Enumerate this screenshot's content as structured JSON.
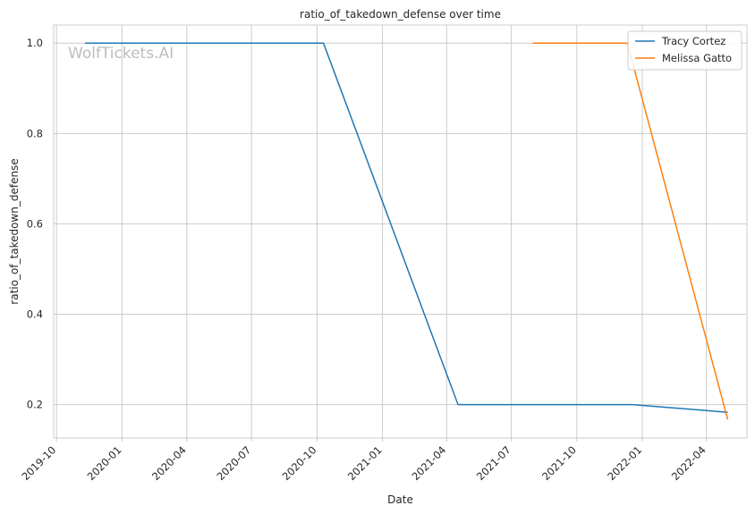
{
  "chart_data": {
    "type": "line",
    "title": "ratio_of_takedown_defense over time",
    "xlabel": "Date",
    "ylabel": "ratio_of_takedown_defense",
    "watermark": "WolfTickets.AI",
    "xlim": [
      "2019-09-27",
      "2022-05-28"
    ],
    "ylim": [
      0.126,
      1.04
    ],
    "x_ticks": [
      "2019-10",
      "2020-01",
      "2020-04",
      "2020-07",
      "2020-10",
      "2021-01",
      "2021-04",
      "2021-07",
      "2021-10",
      "2022-01",
      "2022-04"
    ],
    "y_ticks": [
      0.2,
      0.4,
      0.6,
      0.8,
      1.0
    ],
    "y_tick_labels": [
      "0.2",
      "0.4",
      "0.6",
      "0.8",
      "1.0"
    ],
    "grid": true,
    "legend_position": "top-right",
    "series": [
      {
        "name": "Tracy Cortez",
        "color": "#1f77b4",
        "points": [
          {
            "x": "2019-11-10",
            "y": 1.0
          },
          {
            "x": "2020-10-10",
            "y": 1.0
          },
          {
            "x": "2021-04-17",
            "y": 0.2
          },
          {
            "x": "2021-12-18",
            "y": 0.2
          },
          {
            "x": "2022-05-01",
            "y": 0.183
          }
        ]
      },
      {
        "name": "Melissa Gatto",
        "color": "#ff7f0e",
        "points": [
          {
            "x": "2021-07-31",
            "y": 1.0
          },
          {
            "x": "2021-12-11",
            "y": 1.0
          },
          {
            "x": "2022-05-01",
            "y": 0.167
          }
        ]
      }
    ]
  }
}
